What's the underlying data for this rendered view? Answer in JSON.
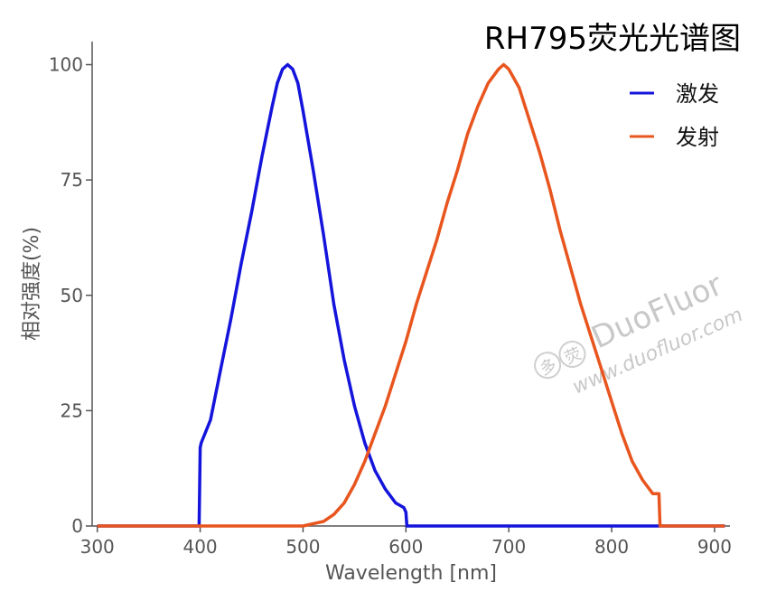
{
  "chart_data": {
    "type": "line",
    "title": "RH795荧光光谱图",
    "xlabel": "Wavelength [nm]",
    "ylabel": "相对强度(%)",
    "xlim": [
      295,
      915
    ],
    "ylim": [
      0,
      105
    ],
    "xticks": [
      300,
      400,
      500,
      600,
      700,
      800,
      900
    ],
    "yticks": [
      0,
      25,
      50,
      75,
      100
    ],
    "grid": false,
    "legend_position": "top-right",
    "series": [
      {
        "name": "激发",
        "color": "#1414dc",
        "x": [
          300,
          399,
          400,
          401,
          410,
          420,
          430,
          440,
          450,
          460,
          470,
          475,
          480,
          485,
          490,
          495,
          500,
          510,
          520,
          530,
          540,
          550,
          560,
          570,
          580,
          590,
          598,
          600,
          601,
          700,
          800,
          910
        ],
        "y": [
          0,
          0,
          17,
          18,
          23,
          34,
          45,
          57,
          68,
          80,
          91,
          96,
          99,
          100,
          99,
          96,
          90,
          77,
          63,
          48,
          36,
          26,
          18,
          12,
          8,
          5,
          4,
          3,
          0,
          0,
          0,
          0
        ]
      },
      {
        "name": "发射",
        "color": "#e8551e",
        "x": [
          300,
          500,
          520,
          530,
          540,
          550,
          560,
          570,
          580,
          590,
          600,
          610,
          620,
          630,
          640,
          650,
          660,
          670,
          680,
          690,
          695,
          700,
          710,
          720,
          730,
          740,
          750,
          760,
          770,
          780,
          790,
          800,
          810,
          820,
          830,
          840,
          846,
          847,
          910
        ],
        "y": [
          0,
          0,
          1,
          2.5,
          5,
          9,
          14,
          20,
          26,
          33,
          40,
          48,
          55,
          62,
          70,
          77,
          85,
          91,
          96,
          99,
          100,
          99,
          95,
          88,
          81,
          73,
          64,
          56,
          48,
          41,
          34,
          27,
          20,
          14,
          10,
          7,
          7,
          0,
          0
        ]
      }
    ]
  },
  "watermark": {
    "brand": "DuoFluor",
    "url": "www.duofluor.com",
    "logo_chars": "多荧"
  }
}
